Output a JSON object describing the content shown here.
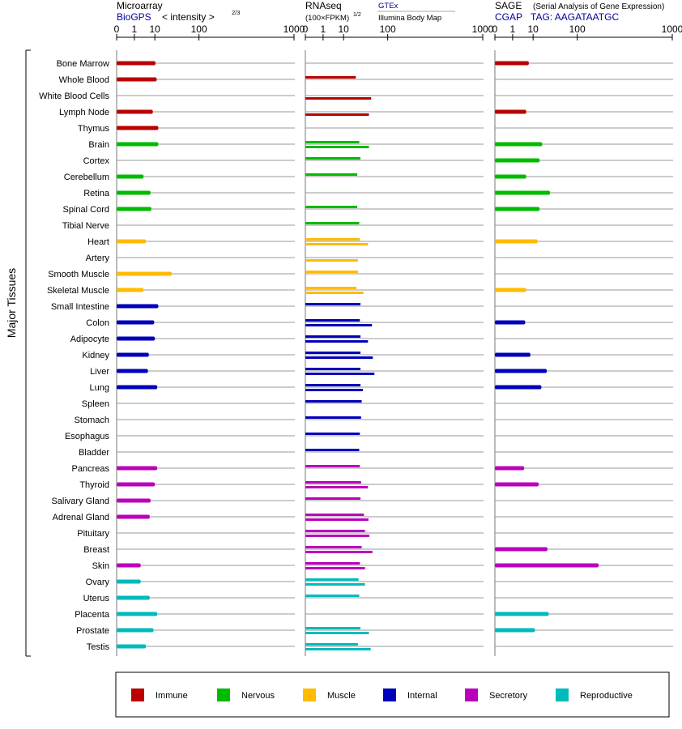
{
  "colors": {
    "Immune": "#bb0000",
    "Nervous": "#00bb00",
    "Muscle": "#ffbb00",
    "Internal": "#0000bb",
    "Secretory": "#bb00bb",
    "Reproductive": "#00bbbb",
    "link": "#000099"
  },
  "ylabel": "Major Tissues",
  "panels": [
    {
      "title": "Microarray",
      "subtitle_link": "BioGPS",
      "subtitle_text": "< intensity >",
      "subtitle_exp": "2/3"
    },
    {
      "title": "RNAseq",
      "subtitle_text": "(100×FPKM)",
      "subtitle_exp": "1/2",
      "source_link": "GTEx",
      "source_text": "Illumina Body Map"
    },
    {
      "title": "SAGE",
      "title_note": "(Serial Analysis of Gene Expression)",
      "subtitle_link": "CGAP",
      "subtitle_text": "TAG: AAGATAATGC"
    }
  ],
  "chart_data": {
    "type": "bar",
    "scale": "power",
    "xlim": [
      0,
      1000
    ],
    "xticks": [
      "0",
      "1",
      "10",
      "100",
      "1000"
    ],
    "xtick_values": [
      0,
      1,
      10,
      100,
      1000
    ],
    "categories": [
      "Bone Marrow",
      "Whole Blood",
      "White Blood Cells",
      "Lymph Node",
      "Thymus",
      "Brain",
      "Cortex",
      "Cerebellum",
      "Retina",
      "Spinal Cord",
      "Tibial Nerve",
      "Heart",
      "Artery",
      "Smooth Muscle",
      "Skeletal Muscle",
      "Small Intestine",
      "Colon",
      "Adipocyte",
      "Kidney",
      "Liver",
      "Lung",
      "Spleen",
      "Stomach",
      "Esophagus",
      "Bladder",
      "Pancreas",
      "Thyroid",
      "Salivary Gland",
      "Adrenal Gland",
      "Pituitary",
      "Breast",
      "Skin",
      "Ovary",
      "Uterus",
      "Placenta",
      "Prostate",
      "Testis"
    ],
    "groups": [
      "Immune",
      "Immune",
      "Immune",
      "Immune",
      "Immune",
      "Nervous",
      "Nervous",
      "Nervous",
      "Nervous",
      "Nervous",
      "Nervous",
      "Muscle",
      "Muscle",
      "Muscle",
      "Muscle",
      "Internal",
      "Internal",
      "Internal",
      "Internal",
      "Internal",
      "Internal",
      "Internal",
      "Internal",
      "Internal",
      "Internal",
      "Secretory",
      "Secretory",
      "Secretory",
      "Secretory",
      "Secretory",
      "Secretory",
      "Secretory",
      "Reproductive",
      "Reproductive",
      "Reproductive",
      "Reproductive",
      "Reproductive"
    ],
    "series": [
      {
        "name": "Microarray",
        "values": [
          10.5,
          11.5,
          null,
          8.5,
          13,
          13,
          null,
          3.5,
          7,
          7.5,
          null,
          4.5,
          null,
          30,
          3.5,
          13,
          9.5,
          10,
          6,
          5.5,
          12,
          null,
          null,
          null,
          null,
          12,
          10,
          7,
          6.5,
          null,
          null,
          2.5,
          2.5,
          6.5,
          12,
          9,
          4.5
        ]
      },
      {
        "name": "GTEx",
        "values": [
          null,
          23,
          null,
          null,
          null,
          28,
          30,
          25,
          null,
          25,
          28,
          29,
          null,
          26,
          24,
          30,
          29,
          30,
          30,
          30,
          30,
          32,
          31,
          29,
          28,
          29,
          31,
          30,
          36,
          38,
          32,
          29,
          27,
          28,
          null,
          30,
          26
        ]
      },
      {
        "name": "Illumina Body Map",
        "values": [
          null,
          null,
          51,
          46,
          null,
          46,
          null,
          null,
          null,
          null,
          null,
          44,
          26,
          null,
          35,
          null,
          53,
          44,
          55,
          59,
          34,
          null,
          null,
          null,
          null,
          null,
          44,
          null,
          45,
          47,
          54,
          38,
          38,
          null,
          null,
          46,
          50
        ]
      },
      {
        "name": "SAGE",
        "values": [
          7,
          null,
          null,
          5.5,
          null,
          19,
          16,
          5.5,
          30,
          16,
          null,
          14,
          null,
          null,
          5.5,
          null,
          5,
          null,
          8,
          25,
          18,
          null,
          null,
          null,
          null,
          4.5,
          15,
          null,
          null,
          null,
          26,
          200,
          null,
          null,
          28,
          11.5,
          null
        ]
      }
    ]
  },
  "legend": [
    "Immune",
    "Nervous",
    "Muscle",
    "Internal",
    "Secretory",
    "Reproductive"
  ]
}
